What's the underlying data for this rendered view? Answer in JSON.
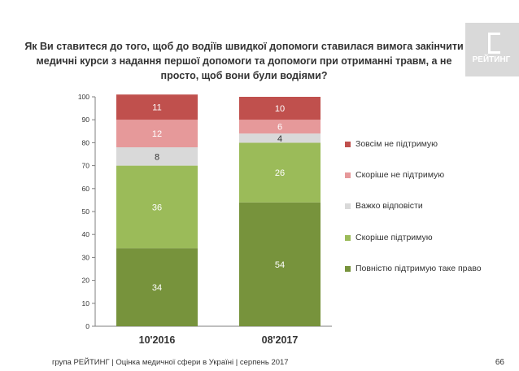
{
  "title": "Як Ви ставитеся до того, щоб до водіїв швидкої допомоги ставилася вимога закінчити медичні курси з надання першої допомоги та допомоги при отриманні травм, а не просто, щоб вони були водіями?",
  "logo": {
    "text": "РЕЙТИНГ"
  },
  "footer": "група РЕЙТИНГ | Оцінка медичної сфери в Україні | серпень 2017",
  "page_number": "66",
  "chart_data": {
    "type": "bar",
    "stacked": true,
    "categories": [
      "10'2016",
      "08'2017"
    ],
    "ylim": [
      0,
      100
    ],
    "yticks": [
      0,
      10,
      20,
      30,
      40,
      50,
      60,
      70,
      80,
      90,
      100
    ],
    "grid": false,
    "legend_position": "right",
    "series": [
      {
        "name": "Повністю підтримую таке право",
        "values": [
          34,
          54
        ],
        "color": "#77933c",
        "label_color": "#ffffff"
      },
      {
        "name": "Скоріше підтримую",
        "values": [
          36,
          26
        ],
        "color": "#9bbb59",
        "label_color": "#ffffff"
      },
      {
        "name": "Важко відповісти",
        "values": [
          8,
          4
        ],
        "color": "#d9d9d9",
        "label_color": "#333333"
      },
      {
        "name": "Скоріше не підтримую",
        "values": [
          12,
          6
        ],
        "color": "#e6999a",
        "label_color": "#ffffff"
      },
      {
        "name": "Зовсім не підтримую",
        "values": [
          11,
          10
        ],
        "color": "#c0504d",
        "label_color": "#ffffff"
      }
    ]
  }
}
